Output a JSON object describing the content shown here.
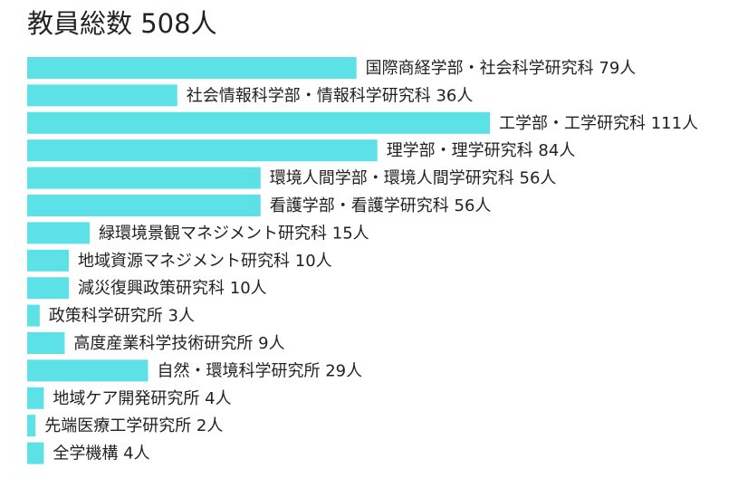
{
  "title": "教員総数 508人",
  "colors": {
    "bar": "#5ce1e6",
    "text": "#222222"
  },
  "chart_data": {
    "type": "bar",
    "orientation": "horizontal",
    "title": "教員総数 508人",
    "xlabel": "",
    "ylabel": "",
    "grid": false,
    "legend": "none",
    "unit": "人",
    "categories": [
      "国際商経学部・社会科学研究科",
      "社会情報科学部・情報科学研究科",
      "工学部・工学研究科",
      "理学部・理学研究科",
      "環境人間学部・環境人間学研究科",
      "看護学部・看護学研究科",
      "緑環境景観マネジメント研究科",
      "地域資源マネジメント研究科",
      "減災復興政策研究科",
      "政策科学研究所",
      "高度産業科学技術研究所",
      "自然・環境科学研究所",
      "地域ケア開発研究所",
      "先端医療工学研究所",
      "全学機構"
    ],
    "values": [
      79,
      36,
      111,
      84,
      56,
      56,
      15,
      10,
      10,
      3,
      9,
      29,
      4,
      2,
      4
    ],
    "labels": [
      "国際商経学部・社会科学研究科 79人",
      "社会情報科学部・情報科学研究科 36人",
      "工学部・工学研究科 111人",
      "理学部・理学研究科 84人",
      "環境人間学部・環境人間学研究科 56人",
      "看護学部・看護学研究科 56人",
      "緑環境景観マネジメント研究科 15人",
      "地域資源マネジメント研究科 10人",
      "減災復興政策研究科 10人",
      "政策科学研究所 3人",
      "高度産業科学技術研究所 9人",
      "自然・環境科学研究所 29人",
      "地域ケア開発研究所 4人",
      "先端医療工学研究所 2人",
      "全学機構 4人"
    ]
  }
}
